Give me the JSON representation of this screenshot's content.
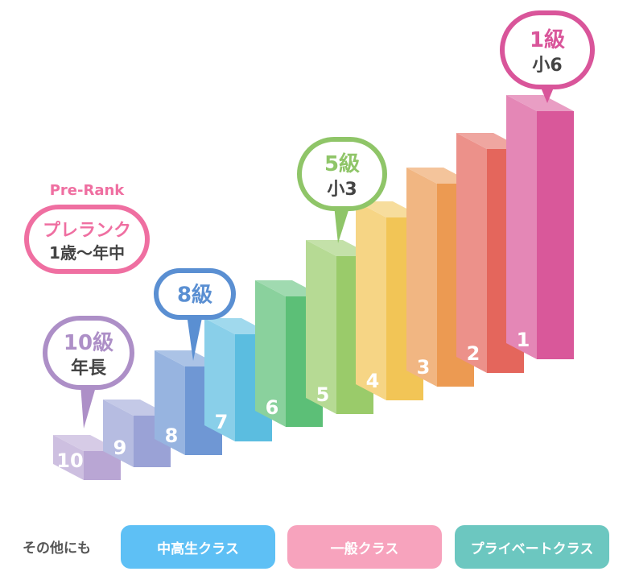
{
  "steps": [
    {
      "label": "10",
      "color": "#b9a6d4"
    },
    {
      "label": "9",
      "color": "#9aa2d6"
    },
    {
      "label": "8",
      "color": "#6f97d4"
    },
    {
      "label": "7",
      "color": "#5bbde0"
    },
    {
      "label": "6",
      "color": "#5cbf77"
    },
    {
      "label": "5",
      "color": "#9acb6a"
    },
    {
      "label": "4",
      "color": "#f2c556"
    },
    {
      "label": "3",
      "color": "#ec9a52"
    },
    {
      "label": "2",
      "color": "#e4665c"
    },
    {
      "label": "1",
      "color": "#d9589a"
    }
  ],
  "callouts": {
    "prerank": {
      "en": "Pre-Rank",
      "title": "プレランク",
      "sub": "1歳～年中",
      "color": "#ef6fa1"
    },
    "grade10": {
      "title": "10級",
      "sub": "年長",
      "color": "#ad8fc7"
    },
    "grade8": {
      "title": "8級",
      "sub": "",
      "color": "#5a8fd2"
    },
    "grade5": {
      "title": "5級",
      "sub": "小3",
      "color": "#8fc568"
    },
    "grade1": {
      "title": "1級",
      "sub": "小6",
      "color": "#d9559a"
    }
  },
  "footer": {
    "lead": "その他にも",
    "classes": [
      {
        "label": "中高生クラス",
        "color": "#5ec0f5"
      },
      {
        "label": "一般クラス",
        "color": "#f7a3bd"
      },
      {
        "label": "プライベートクラス",
        "color": "#6cc7c0"
      }
    ]
  }
}
